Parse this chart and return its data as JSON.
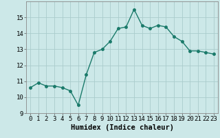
{
  "x": [
    0,
    1,
    2,
    3,
    4,
    5,
    6,
    7,
    8,
    9,
    10,
    11,
    12,
    13,
    14,
    15,
    16,
    17,
    18,
    19,
    20,
    21,
    22,
    23
  ],
  "y": [
    10.6,
    10.9,
    10.7,
    10.7,
    10.6,
    10.4,
    9.5,
    11.4,
    12.8,
    13.0,
    13.5,
    14.3,
    14.4,
    15.5,
    14.5,
    14.3,
    14.5,
    14.4,
    13.8,
    13.5,
    12.9,
    12.9,
    12.8,
    12.7
  ],
  "line_color": "#1a7a6a",
  "marker": "o",
  "markersize": 2.5,
  "linewidth": 1.0,
  "xlabel": "Humidex (Indice chaleur)",
  "xlim": [
    -0.5,
    23.5
  ],
  "ylim": [
    9,
    16.0
  ],
  "yticks": [
    9,
    10,
    11,
    12,
    13,
    14,
    15
  ],
  "xticks": [
    0,
    1,
    2,
    3,
    4,
    5,
    6,
    7,
    8,
    9,
    10,
    11,
    12,
    13,
    14,
    15,
    16,
    17,
    18,
    19,
    20,
    21,
    22,
    23
  ],
  "xtick_labels": [
    "0",
    "1",
    "2",
    "3",
    "4",
    "5",
    "6",
    "7",
    "8",
    "9",
    "10",
    "11",
    "12",
    "13",
    "14",
    "15",
    "16",
    "17",
    "18",
    "19",
    "20",
    "21",
    "22",
    "23"
  ],
  "bg_color": "#cce8e8",
  "grid_color": "#aacccc",
  "tick_fontsize": 6.5,
  "xlabel_fontsize": 7.5
}
